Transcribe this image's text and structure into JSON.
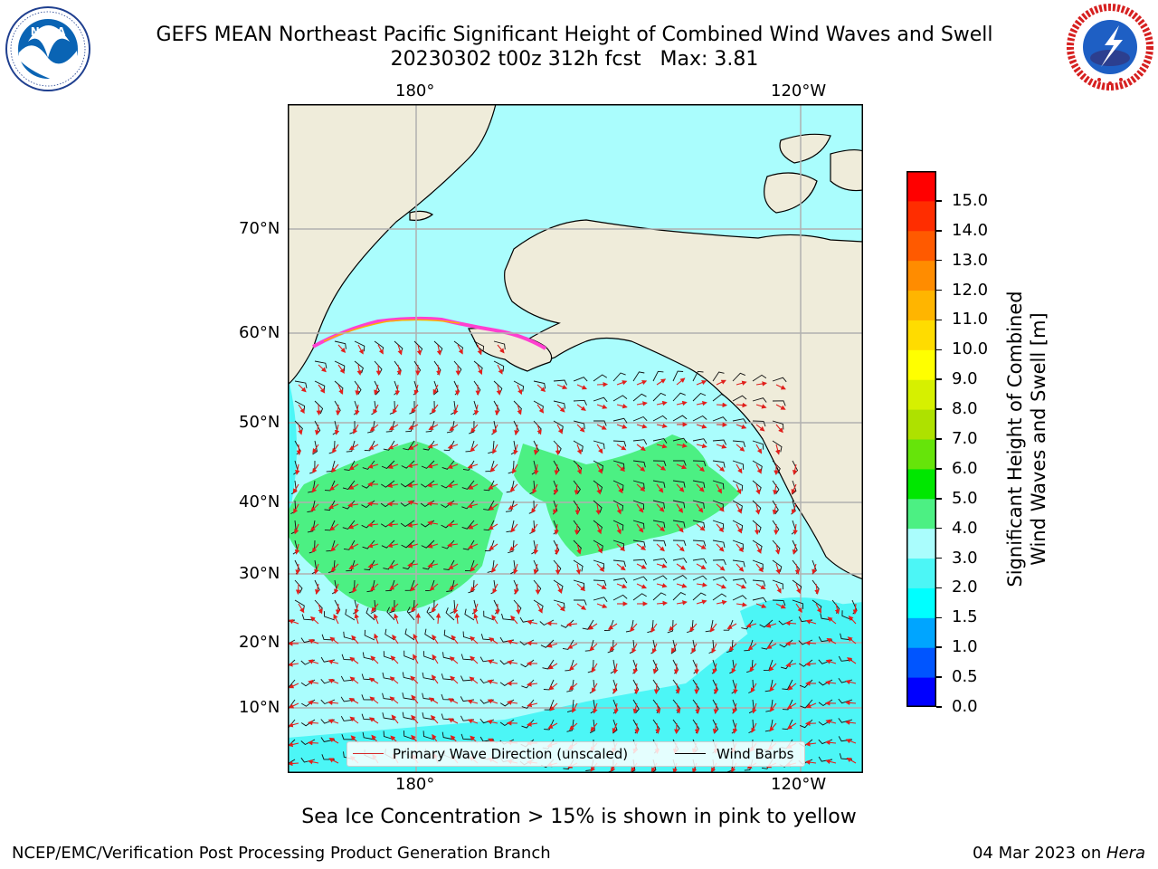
{
  "header": {
    "title": "GEFS MEAN Northeast Pacific Significant Height of Combined Wind Waves and Swell",
    "subtitle": "20230302 t00z 312h fcst   Max: 3.81"
  },
  "logos": {
    "left": {
      "name": "noaa-logo",
      "text": "NOAA",
      "ring_text": "NATIONAL OCEANIC AND ATMOSPHERIC ADMINISTRATION · U.S. DEPARTMENT OF COMMERCE"
    },
    "right": {
      "name": "nws-logo",
      "ring_text": "NATIONAL WEATHER SERVICE"
    }
  },
  "map": {
    "lon_labels_top": [
      "180°",
      "120°W"
    ],
    "lon_labels_bottom": [
      "180°",
      "120°W"
    ],
    "lat_labels": [
      "70°N",
      "60°N",
      "50°N",
      "40°N",
      "30°N",
      "20°N",
      "10°N"
    ],
    "colors": {
      "land": "#efecda",
      "ocean_low": "#aafdfd",
      "ocean_mid": "#4cf6f6",
      "high_wave": "#4cf083",
      "arrow": "#e0201c",
      "barb": "#111111",
      "grid": "#b0b0b0"
    },
    "max_value": 3.81
  },
  "legend": {
    "primary_wave": "Primary Wave Direction (unscaled)",
    "wind_barbs": "Wind Barbs",
    "primary_wave_color": "#d62728",
    "wind_barbs_color": "#000000"
  },
  "colorbar": {
    "title_line1": "Significant Height of Combined",
    "title_line2": "Wind Waves and Swell [m]",
    "ticks": [
      "0.0",
      "0.5",
      "1.0",
      "1.5",
      "2.0",
      "3.0",
      "4.0",
      "5.0",
      "6.0",
      "7.0",
      "8.0",
      "9.0",
      "10.0",
      "11.0",
      "12.0",
      "13.0",
      "14.0",
      "15.0"
    ],
    "colors": [
      "#0000ff",
      "#0055ff",
      "#00a5ff",
      "#00ffff",
      "#4cf6f6",
      "#aafdfd",
      "#4cf083",
      "#00e700",
      "#66e40a",
      "#aee100",
      "#d6f000",
      "#ffff00",
      "#ffdc00",
      "#ffb500",
      "#ff8c00",
      "#ff5a00",
      "#ff2d00",
      "#ff0000"
    ]
  },
  "ice_note": "Sea Ice Concentration > 15% is shown in pink to yellow",
  "footer": {
    "left": "NCEP/EMC/Verification Post Processing Product Generation Branch",
    "date": "04 Mar 2023 on ",
    "host": "Hera"
  }
}
